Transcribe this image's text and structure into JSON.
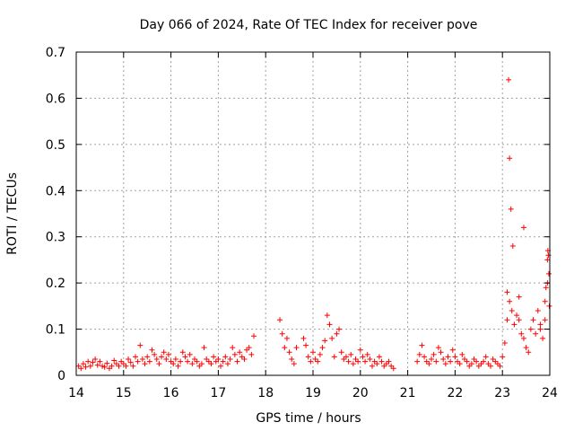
{
  "chart_data": {
    "type": "scatter",
    "title": "Day 066 of 2024, Rate Of TEC Index for receiver pove",
    "xlabel": "GPS time / hours",
    "ylabel": "ROTI / TECUs",
    "xlim": [
      14,
      24
    ],
    "ylim": [
      0,
      0.7
    ],
    "xticks": [
      "14",
      "15",
      "16",
      "17",
      "18",
      "19",
      "20",
      "21",
      "22",
      "23",
      "24"
    ],
    "yticks": [
      "0",
      "0.1",
      "0.2",
      "0.3",
      "0.4",
      "0.5",
      "0.6",
      "0.7"
    ],
    "grid": true,
    "marker": "+",
    "color": "#ff0000",
    "series": [
      {
        "x": [
          14.05,
          14.1,
          14.15,
          14.2,
          14.25,
          14.3,
          14.35,
          14.4,
          14.45,
          14.5,
          14.55,
          14.6,
          14.65,
          14.7,
          14.75,
          14.8,
          14.85,
          14.9,
          14.95,
          15.0,
          15.05,
          15.1,
          15.15,
          15.2,
          15.25,
          15.3,
          15.35,
          15.4,
          15.45,
          15.5,
          15.55,
          15.6,
          15.65,
          15.7,
          15.75,
          15.8,
          15.85,
          15.9,
          15.95,
          16.0,
          16.05,
          16.1,
          16.15,
          16.2,
          16.25,
          16.3,
          16.35,
          16.4,
          16.45,
          16.5,
          16.55,
          16.6,
          16.65,
          16.7,
          16.75,
          16.8,
          16.85,
          16.9,
          16.95,
          17.0,
          17.05,
          17.1,
          17.15,
          17.2,
          17.25,
          17.3,
          17.35,
          17.4,
          17.45,
          17.5,
          17.55,
          17.6,
          17.65,
          17.7,
          17.75,
          18.3,
          18.35,
          18.4,
          18.45,
          18.5,
          18.55,
          18.6,
          18.65,
          18.8,
          18.85,
          18.9,
          18.95,
          19.0,
          19.05,
          19.1,
          19.15,
          19.2,
          19.25,
          19.3,
          19.35,
          19.4,
          19.45,
          19.5,
          19.55,
          19.6,
          19.65,
          19.7,
          19.75,
          19.8,
          19.85,
          19.9,
          19.95,
          20.0,
          20.05,
          20.1,
          20.15,
          20.2,
          20.25,
          20.3,
          20.35,
          20.4,
          20.45,
          20.5,
          20.55,
          20.6,
          20.65,
          20.7,
          21.2,
          21.25,
          21.3,
          21.35,
          21.4,
          21.45,
          21.5,
          21.55,
          21.6,
          21.65,
          21.7,
          21.75,
          21.8,
          21.85,
          21.9,
          21.95,
          22.0,
          22.05,
          22.1,
          22.15,
          22.2,
          22.25,
          22.3,
          22.35,
          22.4,
          22.45,
          22.5,
          22.55,
          22.6,
          22.65,
          22.7,
          22.75,
          22.8,
          22.85,
          22.9,
          22.95,
          23.0,
          23.05,
          23.1,
          23.15,
          23.2,
          23.25,
          23.3,
          23.35,
          23.4,
          23.45,
          23.5,
          23.55,
          23.6,
          23.65,
          23.7,
          23.75,
          23.8,
          23.85,
          23.9,
          23.95,
          23.1,
          23.13,
          23.15,
          23.18,
          23.22,
          23.35,
          23.45,
          23.8,
          23.9,
          23.92,
          23.95,
          23.96,
          23.97,
          23.98,
          23.99
        ],
        "y": [
          0.02,
          0.015,
          0.025,
          0.018,
          0.03,
          0.02,
          0.028,
          0.035,
          0.022,
          0.03,
          0.02,
          0.018,
          0.026,
          0.015,
          0.02,
          0.032,
          0.025,
          0.02,
          0.03,
          0.025,
          0.02,
          0.035,
          0.028,
          0.02,
          0.04,
          0.03,
          0.065,
          0.035,
          0.025,
          0.04,
          0.03,
          0.055,
          0.045,
          0.035,
          0.025,
          0.04,
          0.05,
          0.035,
          0.045,
          0.03,
          0.025,
          0.035,
          0.02,
          0.03,
          0.05,
          0.04,
          0.03,
          0.045,
          0.025,
          0.035,
          0.03,
          0.02,
          0.025,
          0.06,
          0.035,
          0.03,
          0.025,
          0.04,
          0.03,
          0.035,
          0.02,
          0.03,
          0.04,
          0.025,
          0.035,
          0.06,
          0.045,
          0.03,
          0.05,
          0.04,
          0.035,
          0.055,
          0.06,
          0.045,
          0.085,
          0.12,
          0.09,
          0.06,
          0.08,
          0.05,
          0.035,
          0.025,
          0.06,
          0.08,
          0.065,
          0.04,
          0.03,
          0.05,
          0.035,
          0.03,
          0.045,
          0.06,
          0.075,
          0.13,
          0.11,
          0.08,
          0.04,
          0.09,
          0.1,
          0.05,
          0.035,
          0.04,
          0.03,
          0.045,
          0.025,
          0.035,
          0.03,
          0.055,
          0.04,
          0.03,
          0.045,
          0.035,
          0.02,
          0.03,
          0.025,
          0.04,
          0.03,
          0.02,
          0.025,
          0.03,
          0.02,
          0.015,
          0.03,
          0.045,
          0.065,
          0.04,
          0.03,
          0.025,
          0.035,
          0.045,
          0.03,
          0.06,
          0.05,
          0.035,
          0.025,
          0.04,
          0.03,
          0.055,
          0.04,
          0.03,
          0.025,
          0.045,
          0.035,
          0.03,
          0.02,
          0.025,
          0.035,
          0.03,
          0.02,
          0.025,
          0.03,
          0.04,
          0.025,
          0.02,
          0.035,
          0.03,
          0.025,
          0.02,
          0.04,
          0.07,
          0.12,
          0.16,
          0.14,
          0.11,
          0.13,
          0.17,
          0.09,
          0.08,
          0.06,
          0.05,
          0.1,
          0.12,
          0.09,
          0.14,
          0.11,
          0.08,
          0.12,
          0.2,
          0.18,
          0.64,
          0.47,
          0.36,
          0.28,
          0.12,
          0.32,
          0.1,
          0.16,
          0.19,
          0.25,
          0.27,
          0.26,
          0.22,
          0.15
        ]
      }
    ]
  }
}
